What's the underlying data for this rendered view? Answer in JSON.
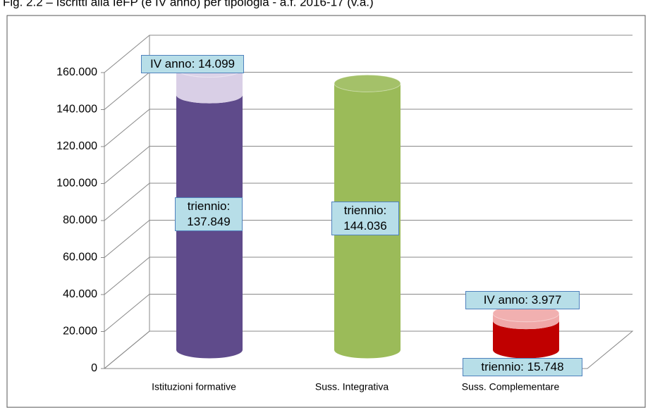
{
  "chart_data": {
    "type": "bar3d",
    "title": "Fig. 2.2 – Iscritti alla IeFP (e IV anno) per tipologia - a.f. 2016-17 (v.a.)",
    "categories": [
      "Istituzioni formative",
      "Suss. Integrativa",
      "Suss. Complementare"
    ],
    "stacked": true,
    "series": [
      {
        "name": "triennio",
        "colors": [
          "#5f4b8b",
          "#9bbb59",
          "#c00000"
        ],
        "values": [
          137849,
          144036,
          15748
        ],
        "value_labels": [
          "triennio: 137.849",
          "triennio: 144.036",
          "triennio: 15.748"
        ]
      },
      {
        "name": "IV anno",
        "colors": [
          "#d9cfe6",
          "#b8a8c8",
          "#f0a8a8"
        ],
        "values": [
          14099,
          null,
          3977
        ],
        "value_labels": [
          "IV anno: 14.099",
          null,
          "IV anno: 3.977"
        ]
      }
    ],
    "ylim": [
      0,
      160000
    ],
    "yticks": [
      0,
      {
        "value": 20000,
        "label": "20.000"
      },
      {
        "value": 40000,
        "label": "40.000"
      },
      {
        "value": 60000,
        "label": "60.000"
      },
      {
        "value": 80000,
        "label": "80.000"
      },
      {
        "value": 100000,
        "label": "100.000"
      },
      {
        "value": 120000,
        "label": "120.000"
      },
      {
        "value": 140000,
        "label": "140.000"
      },
      {
        "value": 160000,
        "label": "160.000"
      }
    ],
    "grid": true
  }
}
